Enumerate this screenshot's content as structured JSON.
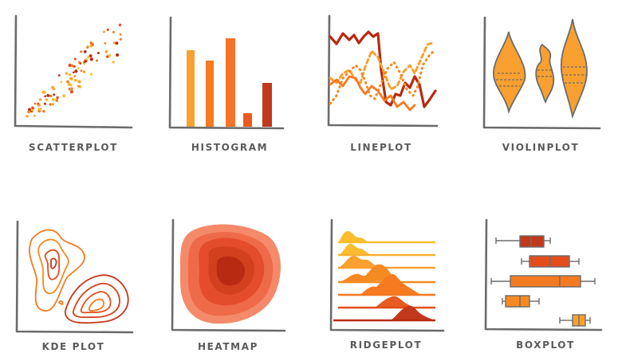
{
  "palette": {
    "dark_red": "#b82a12",
    "red_orange": "#e34d1c",
    "orange": "#f57a20",
    "light_orange": "#f9a030",
    "yellow_orange": "#fbbd2e",
    "axis_gray": "#6b6b6b",
    "label_gray": "#5a5a5a"
  },
  "panels": [
    {
      "id": "scatterplot",
      "label": "SCATTERPLOT",
      "icon": "scatterplot-icon"
    },
    {
      "id": "histogram",
      "label": "HISTOGRAM",
      "icon": "histogram-icon"
    },
    {
      "id": "lineplot",
      "label": "LINEPLOT",
      "icon": "lineplot-icon"
    },
    {
      "id": "violinplot",
      "label": "VIOLINPLOT",
      "icon": "violinplot-icon"
    },
    {
      "id": "kdeplot",
      "label": "KDE PLOT",
      "icon": "kdeplot-icon"
    },
    {
      "id": "heatmap",
      "label": "HEATMAP",
      "icon": "heatmap-icon"
    },
    {
      "id": "ridgeplot",
      "label": "RIDGEPLOT",
      "icon": "ridgeplot-icon"
    },
    {
      "id": "boxplot",
      "label": "BOXPLOT",
      "icon": "boxplot-icon"
    }
  ]
}
